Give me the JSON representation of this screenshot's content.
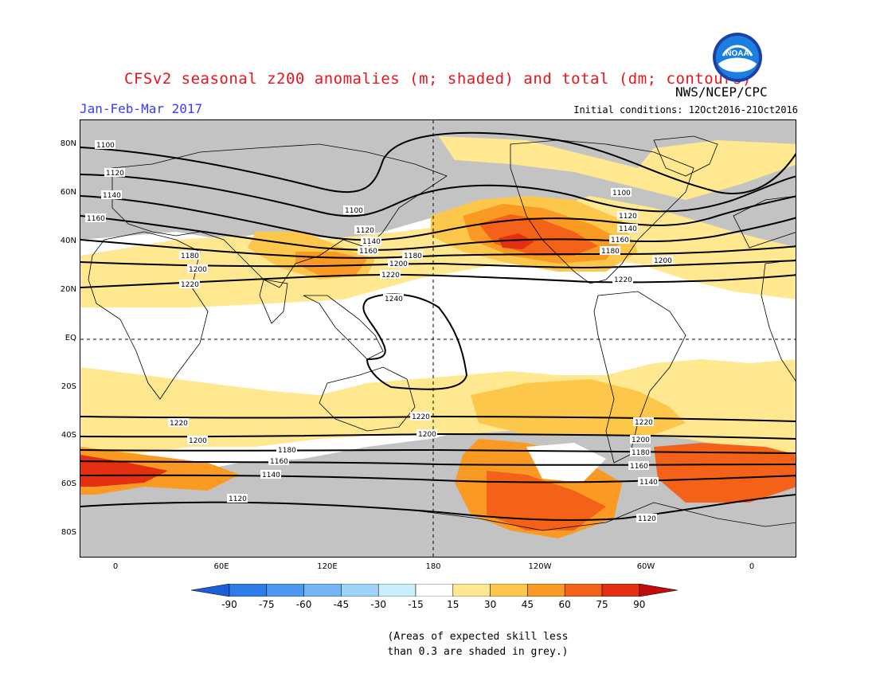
{
  "header": {
    "title": "CFSv2 seasonal z200 anomalies (m; shaded) and total (dm; contours)",
    "period": "Jan-Feb-Mar 2017",
    "agency": "NWS/NCEP/CPC",
    "initial_conditions": "Initial conditions: 12Oct2016-21Oct2016",
    "logo_text": "NOAA"
  },
  "map": {
    "lat_labels": [
      "80N",
      "60N",
      "40N",
      "20N",
      "EQ",
      "20S",
      "40S",
      "60S",
      "80S"
    ],
    "lon_labels": [
      "0",
      "60E",
      "120E",
      "180",
      "120W",
      "60W",
      "0"
    ],
    "contour_labels": [
      "1100",
      "1120",
      "1140",
      "1160",
      "1180",
      "1200",
      "1220",
      "1240"
    ],
    "colors": {
      "no_skill_grey": "#c3c3c3",
      "land_outline": "#000000",
      "contour": "#000000"
    }
  },
  "colorbar": {
    "ticks": [
      "-90",
      "-75",
      "-60",
      "-45",
      "-30",
      "-15",
      "15",
      "30",
      "45",
      "60",
      "75",
      "90"
    ],
    "colors": [
      "#1a5fd9",
      "#2c7cea",
      "#4a98f0",
      "#73b5f5",
      "#9ed4f8",
      "#cbeefb",
      "#ffffff",
      "#ffe88f",
      "#fdc74b",
      "#fb9a22",
      "#f4621a",
      "#e42f10",
      "#c00c0a"
    ]
  },
  "note": {
    "line1": "(Areas of expected skill less",
    "line2": "than 0.3 are shaded in grey.)"
  }
}
